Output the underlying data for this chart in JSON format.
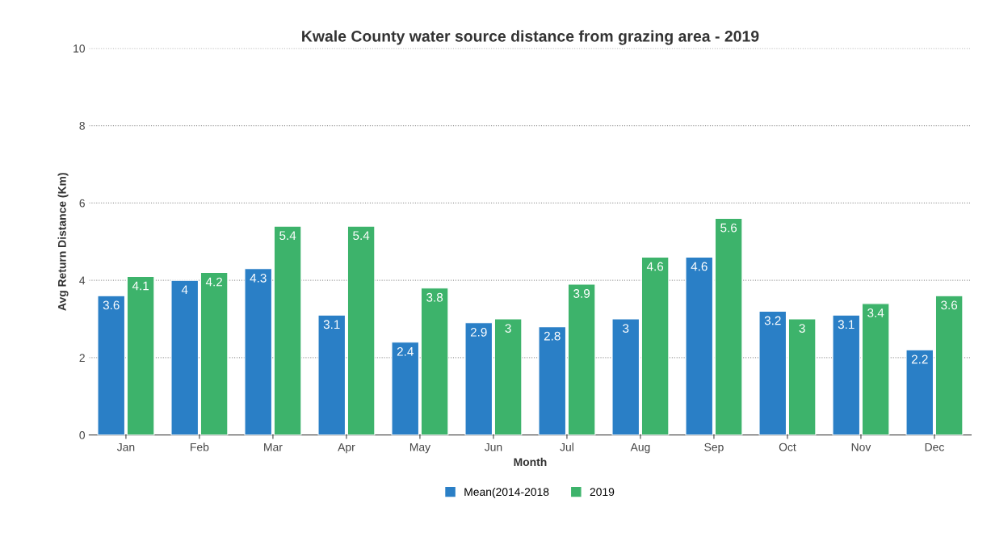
{
  "chart_data": {
    "type": "bar",
    "title": "Kwale County water source distance from grazing area - 2019",
    "xlabel": "Month",
    "ylabel": "Avg Return Distance (Km)",
    "categories": [
      "Jan",
      "Feb",
      "Mar",
      "Apr",
      "May",
      "Jun",
      "Jul",
      "Aug",
      "Sep",
      "Oct",
      "Nov",
      "Dec"
    ],
    "series": [
      {
        "name": "Mean(2014-2018",
        "color": "#2a7fc6",
        "values": [
          3.6,
          4,
          4.3,
          3.1,
          2.4,
          2.9,
          2.8,
          3,
          4.6,
          3.2,
          3.1,
          2.2
        ]
      },
      {
        "name": "2019",
        "color": "#3db36b",
        "values": [
          4.1,
          4.2,
          5.4,
          5.4,
          3.8,
          3,
          3.9,
          4.6,
          5.6,
          3,
          3.4,
          3.6
        ]
      }
    ],
    "ylim": [
      0,
      10
    ],
    "yticks": [
      0,
      2,
      4,
      6,
      8,
      10
    ],
    "grid": "y",
    "legend": "bottom",
    "data_labels": true
  }
}
